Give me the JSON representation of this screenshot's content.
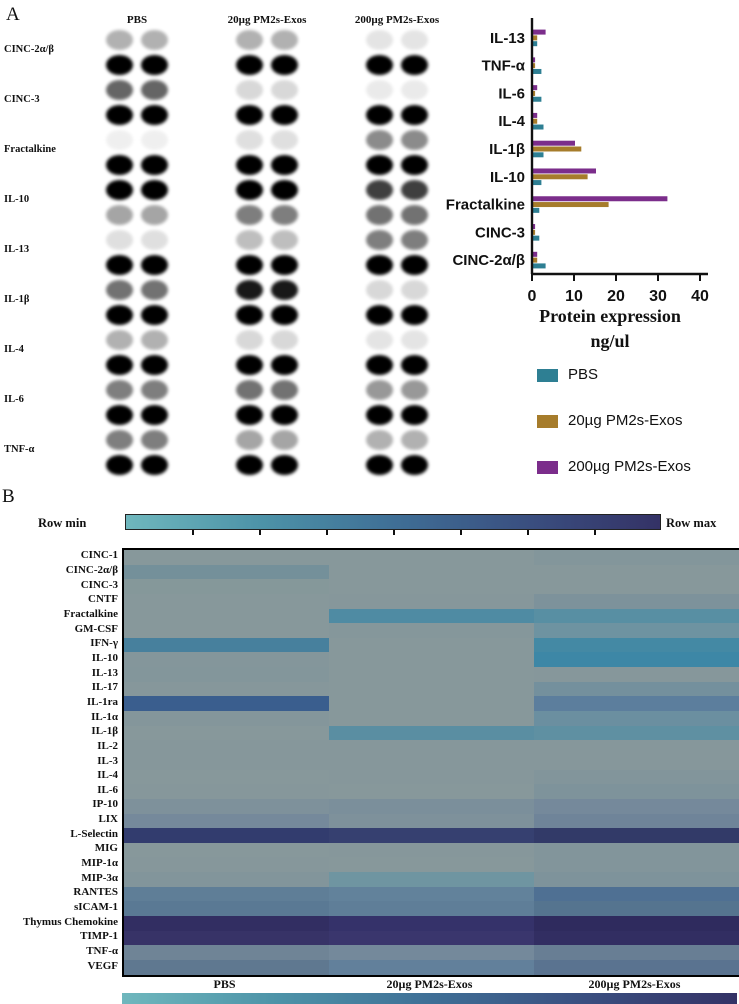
{
  "panel_a": {
    "label": "A",
    "row_labels": [
      "CINC-2α/β",
      "CINC-3",
      "Fractalkine",
      "IL-10",
      "IL-13",
      "IL-1β",
      "IL-4",
      "IL-6",
      "TNF-α"
    ],
    "membranes": [
      {
        "title": "PBS",
        "groups": [
          [
            0.3,
            1.0
          ],
          [
            0.6,
            1.0
          ],
          [
            0.06,
            1.0
          ],
          [
            1.0,
            0.35
          ],
          [
            0.12,
            1.0
          ],
          [
            0.55,
            1.0
          ],
          [
            0.3,
            1.0
          ],
          [
            0.5,
            1.0
          ],
          [
            0.5,
            1.0
          ]
        ]
      },
      {
        "title": "20µg PM2s-Exos",
        "groups": [
          [
            0.3,
            1.0
          ],
          [
            0.15,
            1.0
          ],
          [
            0.12,
            1.0
          ],
          [
            1.0,
            0.5
          ],
          [
            0.25,
            1.0
          ],
          [
            0.9,
            1.0
          ],
          [
            0.15,
            1.0
          ],
          [
            0.55,
            1.0
          ],
          [
            0.35,
            1.0
          ]
        ]
      },
      {
        "title": "200µg PM2s-Exos",
        "groups": [
          [
            0.1,
            1.0
          ],
          [
            0.08,
            1.0
          ],
          [
            0.45,
            1.0
          ],
          [
            0.75,
            0.55
          ],
          [
            0.5,
            1.0
          ],
          [
            0.15,
            1.0
          ],
          [
            0.1,
            1.0
          ],
          [
            0.4,
            1.0
          ],
          [
            0.3,
            1.0
          ]
        ]
      }
    ]
  },
  "chart_data": [
    {
      "type": "bar",
      "orientation": "horizontal",
      "title": "Protein expression ng/ul",
      "title_lines": [
        "Protein expression",
        "ng/ul"
      ],
      "categories": [
        "IL-13",
        "TNF-α",
        "IL-6",
        "IL-4",
        "IL-1β",
        "IL-10",
        "Fractalkine",
        "CINC-3",
        "CINC-2α/β"
      ],
      "series": [
        {
          "name": "PBS",
          "color": "#2e7f93",
          "values": [
            1,
            2,
            2,
            2.5,
            2.5,
            2,
            1.5,
            1.5,
            3
          ]
        },
        {
          "name": "20µg PM2s-Exos",
          "color": "#a67c2b",
          "values": [
            1,
            0.5,
            0.5,
            1,
            11.5,
            13,
            18,
            0.5,
            1
          ]
        },
        {
          "name": "200µg PM2s-Exos",
          "color": "#7b2d8b",
          "values": [
            3,
            0.5,
            1,
            1,
            10,
            15,
            32,
            0.5,
            1
          ]
        }
      ],
      "xlim": [
        0,
        40
      ],
      "xticks": [
        0,
        10,
        20,
        30,
        40
      ],
      "legend_position": "below",
      "grid": false
    },
    {
      "type": "heatmap",
      "columns": [
        "PBS",
        "20µg PM2s-Exos",
        "200µg PM2s-Exos"
      ],
      "rows": [
        "CINC-1",
        "CINC-2α/β",
        "CINC-3",
        "CNTF",
        "Fractalkine",
        "GM-CSF",
        "IFN-γ",
        "IL-10",
        "IL-13",
        "IL-17",
        "IL-1ra",
        "IL-1α",
        "IL-1β",
        "IL-2",
        "IL-3",
        "IL-4",
        "IL-6",
        "IP-10",
        "LIX",
        "L-Selectin",
        "MIG",
        "MIP-1α",
        "MIP-3α",
        "RANTES",
        "sICAM-1",
        "Thymus Chemokine",
        "TIMP-1",
        "TNF-α",
        "VEGF"
      ],
      "cell_colors": [
        [
          "#87989b",
          "#87989b",
          "#83969b"
        ],
        [
          "#74909a",
          "#87989b",
          "#87989b"
        ],
        [
          "#85989a",
          "#87989b",
          "#87989b"
        ],
        [
          "#87989b",
          "#86979b",
          "#7d929b"
        ],
        [
          "#87989b",
          "#4f8ba3",
          "#588fa3"
        ],
        [
          "#87989b",
          "#85979b",
          "#6e93a1"
        ],
        [
          "#47809d",
          "#87989b",
          "#4489a4"
        ],
        [
          "#84969b",
          "#87989b",
          "#3d87a6"
        ],
        [
          "#83969b",
          "#87989b",
          "#86979b"
        ],
        [
          "#86979b",
          "#87989b",
          "#74909d"
        ],
        [
          "#3a5e8e",
          "#87989b",
          "#5c7e9d"
        ],
        [
          "#84969b",
          "#87989b",
          "#6b8fa0"
        ],
        [
          "#87989b",
          "#5a8ea2",
          "#5f90a2"
        ],
        [
          "#86979b",
          "#86979b",
          "#86979b"
        ],
        [
          "#86979b",
          "#86979b",
          "#86979b"
        ],
        [
          "#87989b",
          "#86979b",
          "#82959b"
        ],
        [
          "#86979b",
          "#87989b",
          "#7e939b"
        ],
        [
          "#7e919b",
          "#7b8f9b",
          "#75899b"
        ],
        [
          "#75899b",
          "#7e919b",
          "#6f8499"
        ],
        [
          "#323c6e",
          "#364070",
          "#323a68"
        ],
        [
          "#87989b",
          "#86979b",
          "#82959b"
        ],
        [
          "#86979b",
          "#87989b",
          "#82959b"
        ],
        [
          "#82959b",
          "#6f95a1",
          "#7e939b"
        ],
        [
          "#5f7e97",
          "#62829b",
          "#4f7093"
        ],
        [
          "#5a7994",
          "#5f7e98",
          "#55748f"
        ],
        [
          "#322e62",
          "#35326a",
          "#2f2b5e"
        ],
        [
          "#373367",
          "#3a366d",
          "#322e62"
        ],
        [
          "#6f8496",
          "#74899b",
          "#687e94"
        ],
        [
          "#5f7890",
          "#62809b",
          "#5a7390"
        ]
      ],
      "scale": {
        "min_label": "Row min",
        "max_label": "Row max"
      }
    }
  ],
  "panel_b": {
    "label": "B",
    "scale": {
      "min_label": "Row min",
      "max_label": "Row max",
      "gradient": [
        "#6fb7bd",
        "#4d93a8",
        "#3f6f96",
        "#3a4f80",
        "#343266"
      ]
    },
    "footer_labels": [
      "PBS",
      "20µg PM2s-Exos",
      "200µg PM2s-Exos"
    ]
  }
}
